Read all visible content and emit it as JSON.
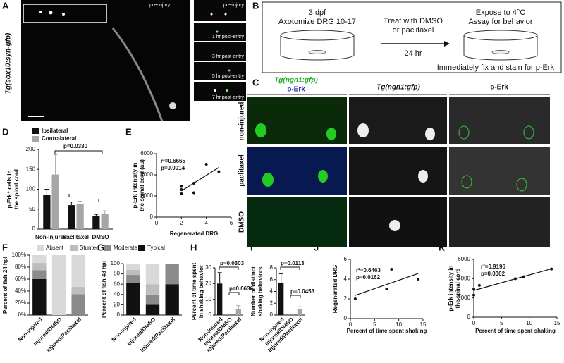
{
  "panel_a": {
    "label": "A",
    "ylabel": "Tg(sox10:syn-gfp)",
    "captions": [
      "pre-injury",
      "pre-injury",
      "1 hr post-entry",
      "3 hr post-entry",
      "5 hr post-entry",
      "7 hr post-entry"
    ]
  },
  "panel_b": {
    "label": "B",
    "step1": [
      "3 dpf",
      "Axotomize DRG 10-17"
    ],
    "step2": [
      "Treat with DMSO",
      "or paclitaxel"
    ],
    "arrow": "24 hr",
    "step3": [
      "Expose to 4°C",
      "Assay for behavior"
    ],
    "footer": "Immediately fix and stain for p-Erk"
  },
  "panel_c": {
    "label": "C",
    "columns": [
      "Tg(ngn1:gfp)",
      "p-Erk",
      "Tg(ngn1:gfp)",
      "p-Erk"
    ],
    "rows": [
      "non-injured",
      "paclitaxel",
      "DMSO"
    ]
  },
  "chart_data": [
    {
      "type": "bar",
      "label": "D",
      "ylabel": [
        "p-Erk⁺ cells in",
        "the spinal cord"
      ],
      "categories": [
        "Non-injured",
        "Paclitaxel",
        "DMSO"
      ],
      "series": [
        {
          "name": "Ipsilateral",
          "color": "#111111",
          "values": [
            85,
            60,
            32
          ],
          "errors": [
            15,
            8,
            5
          ]
        },
        {
          "name": "Contralateral",
          "color": "#a6a6a6",
          "values": [
            137,
            62,
            38
          ],
          "errors": [
            50,
            8,
            8
          ]
        }
      ],
      "ylim": [
        0,
        200
      ],
      "yticks": [
        0,
        50,
        100,
        150,
        200
      ],
      "annotations": [
        "p=0.0330"
      ]
    },
    {
      "type": "scatter",
      "label": "E",
      "ylabel": [
        "p-Erk intensity in",
        "the spinal cord (au)"
      ],
      "xlabel": "Regenerated DRG",
      "x": [
        2,
        2,
        2,
        3,
        3,
        4,
        5
      ],
      "values": [
        2200,
        2600,
        2900,
        2300,
        3200,
        5000,
        4300
      ],
      "color": "#111111",
      "xlim": [
        0,
        6
      ],
      "xticks": [
        0,
        2,
        4,
        6
      ],
      "ylim": [
        0,
        6000
      ],
      "yticks": [
        0,
        2000,
        4000,
        6000
      ],
      "annotations": [
        "r²=0.6665",
        "p=0.0014"
      ]
    },
    {
      "type": "stacked",
      "label": "F",
      "ylabel": "Percent of fish 24 hpi",
      "categories": [
        "Non-injured",
        "Injured/DMSO",
        "Injured/Paclitaxel"
      ],
      "series": [
        {
          "name": "Absent",
          "color": "#d9d9d9",
          "values": [
            13,
            100,
            53
          ]
        },
        {
          "name": "Stunted",
          "color": "#bdbdbd",
          "values": [
            12,
            0,
            12
          ]
        },
        {
          "name": "Moderate",
          "color": "#8a8a8a",
          "values": [
            15,
            0,
            35
          ]
        },
        {
          "name": "Typical",
          "color": "#111111",
          "values": [
            60,
            0,
            0
          ]
        }
      ],
      "ylim": [
        0,
        100
      ],
      "yticks": [
        {
          "value": 0,
          "label": "0%"
        },
        {
          "value": 20,
          "label": "20%"
        },
        {
          "value": 40,
          "label": "40%"
        },
        {
          "value": 60,
          "label": "60%"
        },
        {
          "value": 80,
          "label": "80%"
        },
        {
          "value": 100,
          "label": "100%"
        }
      ]
    },
    {
      "type": "stacked",
      "label": "G",
      "ylabel": "Percent of fish 48 hpi",
      "categories": [
        "Non-injured",
        "Injured/DMSO",
        "Injured/Paclitaxel"
      ],
      "series": [
        {
          "color": "#d9d9d9",
          "values": [
            12,
            40,
            0
          ]
        },
        {
          "color": "#bdbdbd",
          "values": [
            10,
            20,
            0
          ]
        },
        {
          "color": "#8a8a8a",
          "values": [
            16,
            20,
            40
          ]
        },
        {
          "color": "#111111",
          "values": [
            62,
            20,
            60
          ]
        }
      ],
      "ylim": [
        0,
        100
      ],
      "yticks": [
        0,
        20,
        40,
        60,
        80,
        100
      ]
    },
    {
      "type": "bar",
      "label": "H",
      "ylabel": [
        "Percent of time spent",
        "in shaking behavior"
      ],
      "categories": [
        "Non-injured",
        "Injured/DMSO",
        "Injured/Paclitaxel"
      ],
      "values": [
        20,
        0,
        4
      ],
      "errors": [
        7,
        0,
        2
      ],
      "colors": [
        "#111111",
        "#111111",
        "#a6a6a6"
      ],
      "ylim": [
        0,
        30
      ],
      "yticks": [
        0,
        10,
        20,
        30
      ],
      "annotations": [
        "p=0.0303",
        "p=0.0636"
      ]
    },
    {
      "type": "bar",
      "label": "I",
      "ylabel": [
        "Number of distinct",
        "shaking behaviors"
      ],
      "categories": [
        "Non-injured",
        "Injured/DMSO",
        "Injured/Paclitaxel"
      ],
      "values": [
        5.5,
        0,
        1
      ],
      "errors": [
        1.5,
        0,
        0.4
      ],
      "colors": [
        "#111111",
        "#111111",
        "#a6a6a6"
      ],
      "ylim": [
        0,
        8
      ],
      "yticks": [
        0,
        2,
        4,
        6,
        8
      ],
      "annotations": [
        "p=0.0113",
        "p=0.0453"
      ]
    },
    {
      "type": "scatter",
      "label": "J",
      "ylabel": "Regenerated DRG",
      "xlabel": "Percent of time spent shaking",
      "x": [
        1,
        7.5,
        8.5,
        14
      ],
      "values": [
        2,
        3,
        5,
        4
      ],
      "color": "#111111",
      "xlim": [
        0,
        15
      ],
      "xticks": [
        0,
        5,
        10,
        15
      ],
      "ylim": [
        0,
        6
      ],
      "yticks": [
        0,
        2,
        4,
        6
      ],
      "annotations": [
        "r²=0.6463",
        "p=0.0162"
      ]
    },
    {
      "type": "scatter",
      "label": "K",
      "ylabel": [
        "p-Erk intensity in",
        "the spinal cord"
      ],
      "xlabel": "Percent of time spent shaking",
      "x": [
        0,
        0,
        1,
        7.5,
        9,
        14
      ],
      "values": [
        2300,
        2900,
        3300,
        4000,
        4200,
        5000
      ],
      "color": "#111111",
      "xlim": [
        0,
        15
      ],
      "xticks": [
        0,
        5,
        10,
        15
      ],
      "ylim": [
        0,
        6000
      ],
      "yticks": [
        0,
        2000,
        4000,
        6000
      ],
      "annotations": [
        "r²=0.9196",
        "p=0.0002"
      ]
    }
  ]
}
